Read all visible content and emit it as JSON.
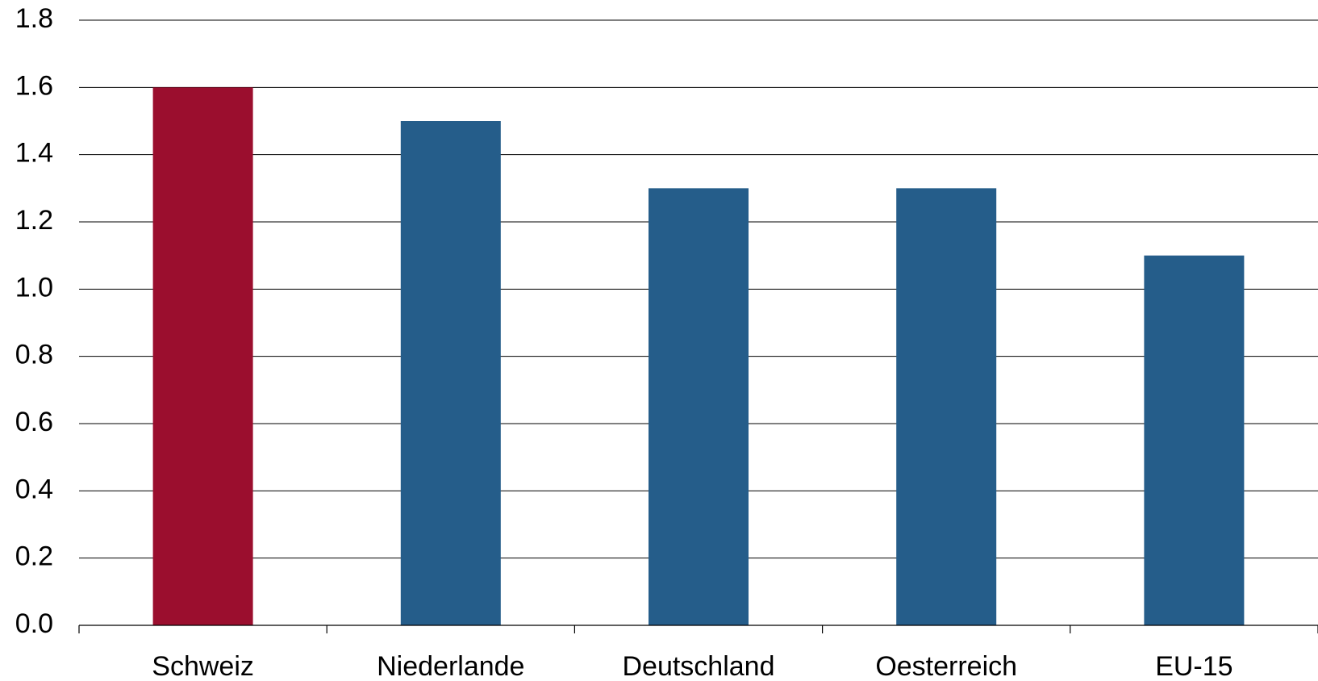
{
  "chart_data": {
    "type": "bar",
    "title": "",
    "xlabel": "",
    "ylabel": "",
    "categories": [
      "Schweiz",
      "Niederlande",
      "Deutschland",
      "Oesterreich",
      "EU-15"
    ],
    "values": [
      1.6,
      1.5,
      1.3,
      1.3,
      1.1
    ],
    "bar_colors": [
      "#9b0e2e",
      "#255d8a",
      "#255d8a",
      "#255d8a",
      "#255d8a"
    ],
    "ylim": [
      0,
      1.8
    ],
    "yticks": [
      0.0,
      0.2,
      0.4,
      0.6,
      0.8,
      1.0,
      1.2,
      1.4,
      1.6,
      1.8
    ],
    "ytick_labels": [
      "0.0",
      "0.2",
      "0.4",
      "0.6",
      "0.8",
      "1.0",
      "1.2",
      "1.4",
      "1.6",
      "1.8"
    ],
    "grid": true,
    "legend": "none"
  }
}
